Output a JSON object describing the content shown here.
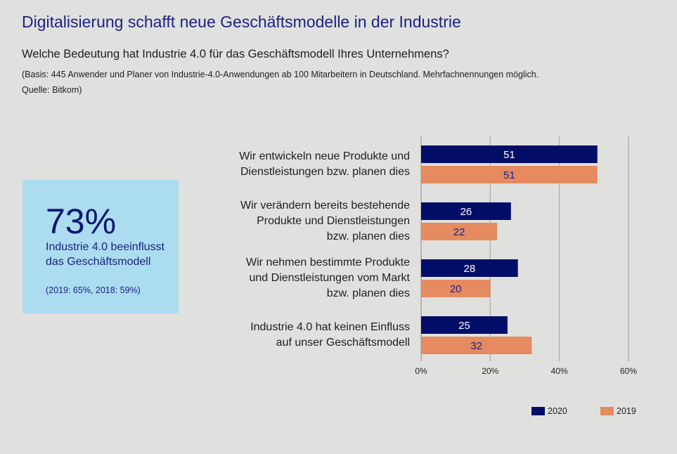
{
  "header": {
    "title": "Digitalisierung schafft neue Geschäftsmodelle in der Industrie",
    "subtitle": "Welche Bedeutung hat Industrie 4.0 für das Geschäftsmodell Ihres Unternehmens?",
    "note": "(Basis: 445 Anwender und Planer von Industrie-4.0-Anwendungen ab 100 Mitarbeitern in Deutschland. Mehrfachnennungen möglich. Quelle: Bitkom)"
  },
  "kpi": {
    "value": "73%",
    "text": "Industrie 4.0 beeinflusst das Geschäftsmodell",
    "sub": "(2019: 65%, 2018: 59%)"
  },
  "colors": {
    "series2020": "#020d68",
    "series2019": "#e68a5f",
    "label2020": "#ffffff",
    "label2019": "#1b2383"
  },
  "chart_data": {
    "type": "bar",
    "orientation": "horizontal",
    "title": "Welche Bedeutung hat Industrie 4.0 für das Geschäftsmodell Ihres Unternehmens?",
    "categories": [
      "Wir entwickeln neue Produkte und Dienstleistungen bzw. planen dies",
      "Wir verändern bereits bestehende Produkte und Dienstleistungen bzw. planen dies",
      "Wir nehmen bestimmte Produkte und Dienstleistungen vom Markt bzw. planen dies",
      "Industrie 4.0 hat keinen Einfluss auf unser Geschäftsmodell"
    ],
    "category_lines": [
      [
        "Wir entwickeln neue Produkte und",
        "Dienstleistungen bzw. planen dies"
      ],
      [
        "Wir verändern bereits bestehende",
        "Produkte und Dienstleistungen",
        "bzw. planen dies"
      ],
      [
        "Wir nehmen bestimmte Produkte",
        "und Dienstleistungen vom Markt",
        "bzw. planen dies"
      ],
      [
        "Industrie 4.0 hat keinen Einfluss",
        "auf unser Geschäftsmodell"
      ]
    ],
    "series": [
      {
        "name": "2020",
        "values": [
          51,
          26,
          28,
          25
        ]
      },
      {
        "name": "2019",
        "values": [
          51,
          22,
          20,
          32
        ]
      }
    ],
    "xlim": [
      0,
      60
    ],
    "xticks": [
      "0%",
      "20%",
      "40%",
      "60%"
    ],
    "xtick_values": [
      0,
      20,
      40,
      60
    ],
    "grid": true,
    "legend": "bottom-right",
    "xlabel": "",
    "ylabel": ""
  }
}
